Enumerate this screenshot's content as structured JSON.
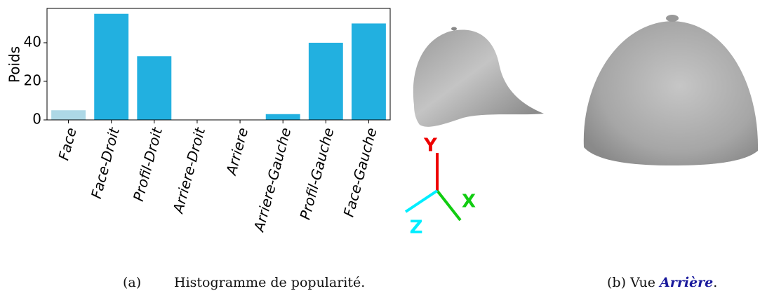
{
  "chart_data": {
    "type": "bar",
    "ylabel": "Poids",
    "categories": [
      "Face",
      "Face-Droit",
      "Profil-Droit",
      "Arriere-Droit",
      "Arriere",
      "Arriere-Gauche",
      "Profil-Gauche",
      "Face-Gauche"
    ],
    "values": [
      5,
      55,
      33,
      0,
      0,
      3,
      40,
      50
    ],
    "colors": [
      "#add8e6",
      "#22b0e0",
      "#22b0e0",
      "#22b0e0",
      "#22b0e0",
      "#22b0e0",
      "#22b0e0",
      "#22b0e0"
    ],
    "ylim": [
      0,
      57.8
    ],
    "yticks": [
      0,
      20,
      40
    ]
  },
  "gizmo": {
    "y": "Y",
    "x": "X",
    "z": "Z"
  },
  "captions": {
    "a_label": "(a)",
    "a_text": "Histogramme de popularité.",
    "b_prefix": "(b) Vue",
    "b_emphasis": "Arrière",
    "b_suffix": "."
  }
}
